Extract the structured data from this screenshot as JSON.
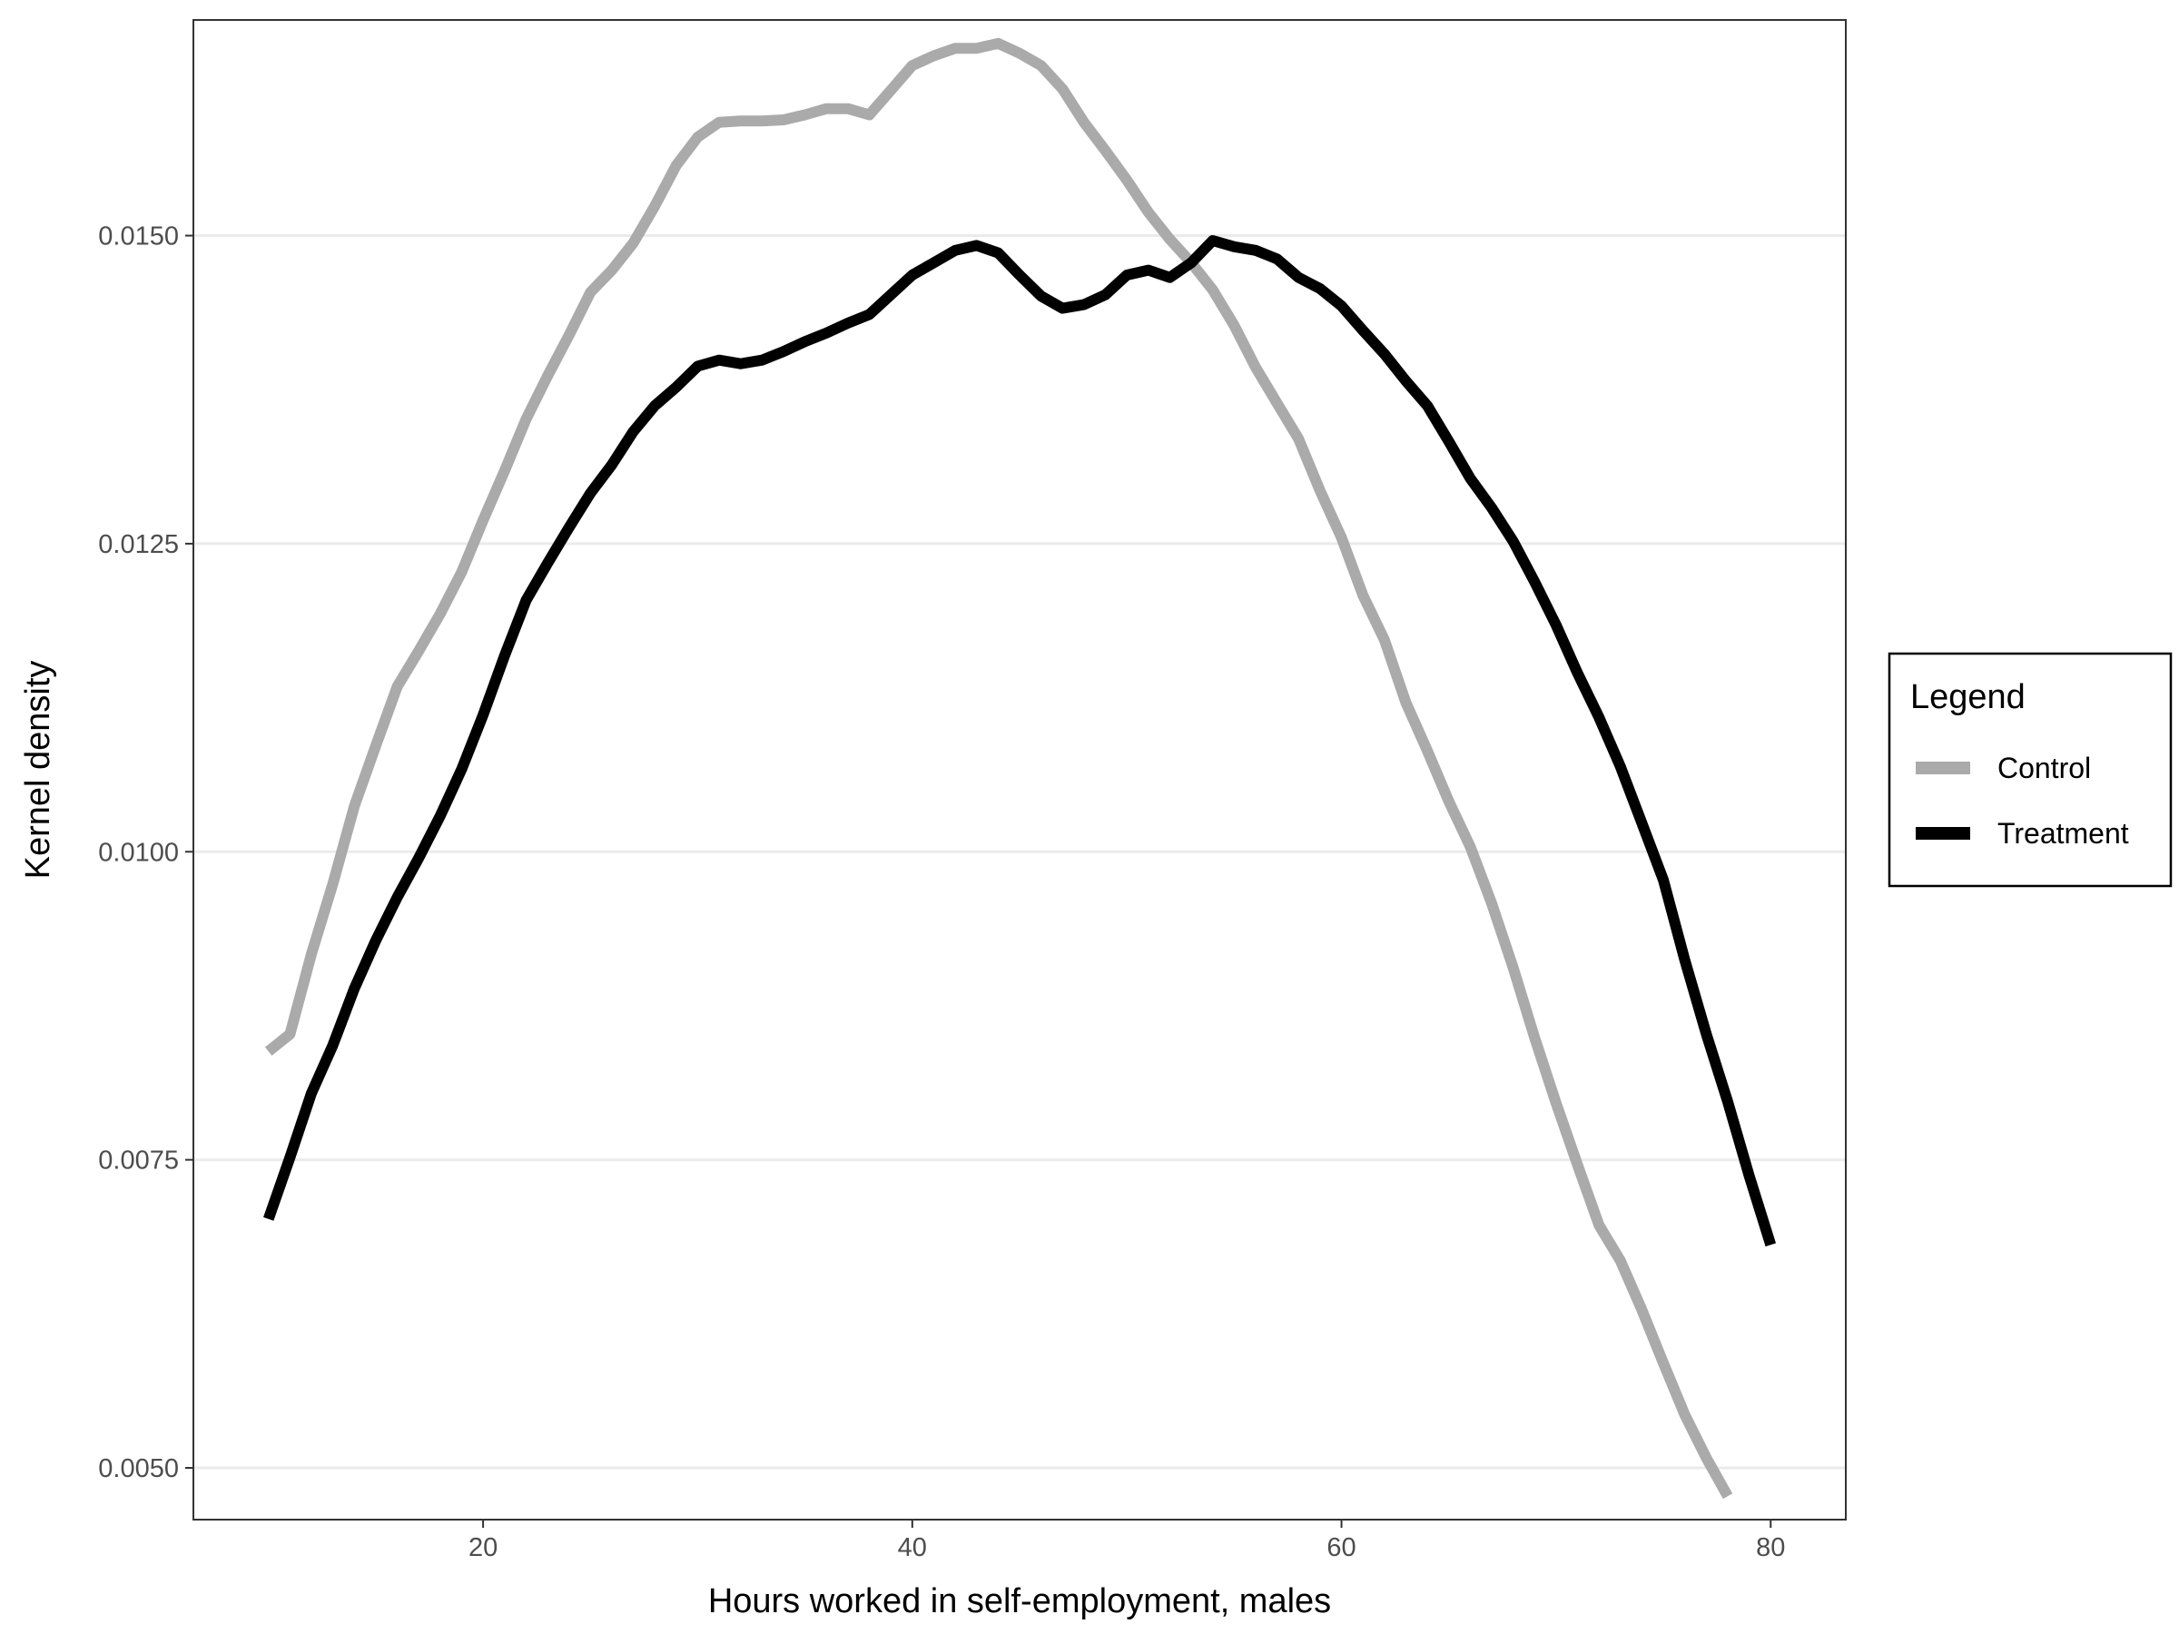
{
  "chart_data": {
    "type": "line",
    "xlabel": "Hours worked in self-employment, males",
    "ylabel": "Kernel density",
    "xlim": [
      6.5,
      83.5
    ],
    "ylim": [
      0.00458,
      0.01675
    ],
    "x_ticks": [
      20,
      40,
      60,
      80
    ],
    "x_tick_labels": [
      "20",
      "40",
      "60",
      "80"
    ],
    "y_ticks": [
      0.005,
      0.0075,
      0.01,
      0.0125,
      0.015
    ],
    "y_tick_labels": [
      "0.0050",
      "0.0075",
      "0.0100",
      "0.0125",
      "0.0150"
    ],
    "grid": "horizontal major lines",
    "legend": {
      "title": "Legend",
      "placement": "right"
    },
    "series": [
      {
        "name": "Control",
        "color": "#aaaaaa",
        "x": [
          10,
          11,
          12,
          13,
          14,
          15,
          16,
          17,
          18,
          19,
          20,
          21,
          22,
          23,
          24,
          25,
          26,
          27,
          28,
          29,
          30,
          31,
          32,
          33,
          34,
          35,
          36,
          37,
          38,
          39,
          40,
          41,
          42,
          43,
          44,
          45,
          46,
          47,
          48,
          49,
          50,
          51,
          52,
          53,
          54,
          55,
          56,
          57,
          58,
          59,
          60,
          61,
          62,
          63,
          64,
          65,
          66,
          67,
          68,
          69,
          70,
          71,
          72,
          73,
          74,
          75,
          76,
          77,
          78
        ],
        "y": [
          0.00838,
          0.00852,
          0.00917,
          0.00974,
          0.01037,
          0.01086,
          0.01134,
          0.01163,
          0.01193,
          0.01227,
          0.01269,
          0.01309,
          0.01351,
          0.01386,
          0.01419,
          0.01454,
          0.01472,
          0.01494,
          0.01524,
          0.01557,
          0.0158,
          0.01592,
          0.01593,
          0.01593,
          0.01594,
          0.01598,
          0.01603,
          0.01603,
          0.01598,
          0.01618,
          0.01638,
          0.01646,
          0.01652,
          0.01652,
          0.01656,
          0.01648,
          0.01638,
          0.01619,
          0.01592,
          0.01569,
          0.01545,
          0.01519,
          0.01497,
          0.01478,
          0.01456,
          0.01427,
          0.01393,
          0.01364,
          0.01335,
          0.01293,
          0.01255,
          0.01208,
          0.01172,
          0.01121,
          0.01082,
          0.01041,
          0.01004,
          0.00958,
          0.00906,
          0.00849,
          0.00796,
          0.00746,
          0.00697,
          0.00668,
          0.00628,
          0.00585,
          0.00543,
          0.00508,
          0.00477
        ]
      },
      {
        "name": "Treatment",
        "color": "#000000",
        "x": [
          10,
          11,
          12,
          13,
          14,
          15,
          16,
          17,
          18,
          19,
          20,
          21,
          22,
          23,
          24,
          25,
          26,
          27,
          28,
          29,
          30,
          31,
          32,
          33,
          34,
          35,
          36,
          37,
          38,
          39,
          40,
          41,
          42,
          43,
          44,
          45,
          46,
          47,
          48,
          49,
          50,
          51,
          52,
          53,
          54,
          55,
          56,
          57,
          58,
          59,
          60,
          61,
          62,
          63,
          64,
          65,
          66,
          67,
          68,
          69,
          70,
          71,
          72,
          73,
          74,
          75,
          76,
          77,
          78,
          79,
          80
        ],
        "y": [
          0.00702,
          0.00752,
          0.00804,
          0.00843,
          0.00889,
          0.00928,
          0.00963,
          0.00995,
          0.01029,
          0.01067,
          0.01111,
          0.01159,
          0.01204,
          0.01234,
          0.01263,
          0.01291,
          0.01314,
          0.01341,
          0.01362,
          0.01377,
          0.01394,
          0.01399,
          0.01396,
          0.01399,
          0.01406,
          0.01414,
          0.01421,
          0.01429,
          0.01436,
          0.01452,
          0.01468,
          0.01478,
          0.01488,
          0.01492,
          0.01486,
          0.01468,
          0.01451,
          0.01441,
          0.01444,
          0.01452,
          0.01468,
          0.01472,
          0.01466,
          0.01478,
          0.01496,
          0.01491,
          0.01488,
          0.01481,
          0.01466,
          0.01457,
          0.01443,
          0.01423,
          0.01404,
          0.01382,
          0.01362,
          0.01333,
          0.01303,
          0.01279,
          0.01252,
          0.01219,
          0.01184,
          0.01145,
          0.01109,
          0.01069,
          0.01023,
          0.00977,
          0.00912,
          0.00852,
          0.00797,
          0.00737,
          0.00681
        ]
      }
    ]
  }
}
